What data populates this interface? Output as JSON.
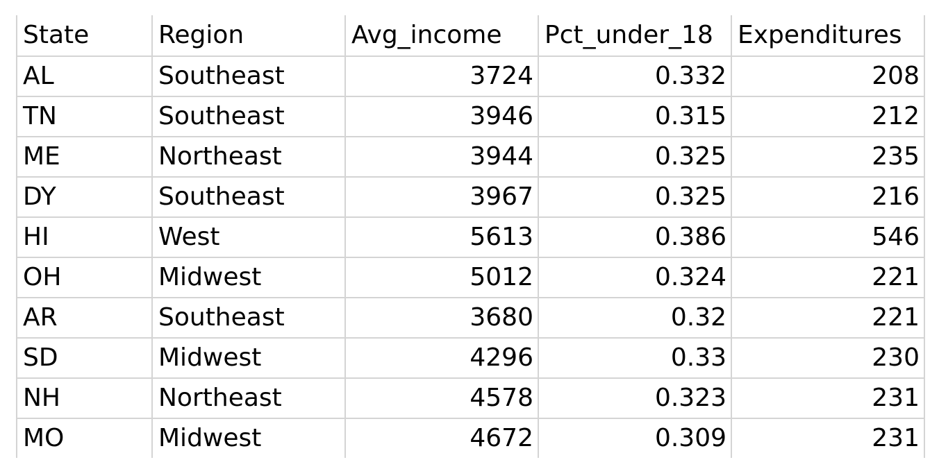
{
  "table": {
    "headers": [
      "State",
      "Region",
      "Avg_income",
      "Pct_under_18",
      "Expenditures"
    ],
    "rows": [
      [
        "AL",
        "Southeast",
        "3724",
        "0.332",
        "208"
      ],
      [
        "TN",
        "Southeast",
        "3946",
        "0.315",
        "212"
      ],
      [
        "ME",
        "Northeast",
        "3944",
        "0.325",
        "235"
      ],
      [
        "DY",
        "Southeast",
        "3967",
        "0.325",
        "216"
      ],
      [
        "HI",
        "West",
        "5613",
        "0.386",
        "546"
      ],
      [
        "OH",
        "Midwest",
        "5012",
        "0.324",
        "221"
      ],
      [
        "AR",
        "Southeast",
        "3680",
        "0.32",
        "221"
      ],
      [
        "SD",
        "Midwest",
        "4296",
        "0.33",
        "230"
      ],
      [
        "NH",
        "Northeast",
        "4578",
        "0.323",
        "231"
      ],
      [
        "MO",
        "Midwest",
        "4672",
        "0.309",
        "231"
      ]
    ]
  },
  "colors": {
    "gridline": "#d4d4d4",
    "text": "#000000",
    "background": "#ffffff"
  }
}
